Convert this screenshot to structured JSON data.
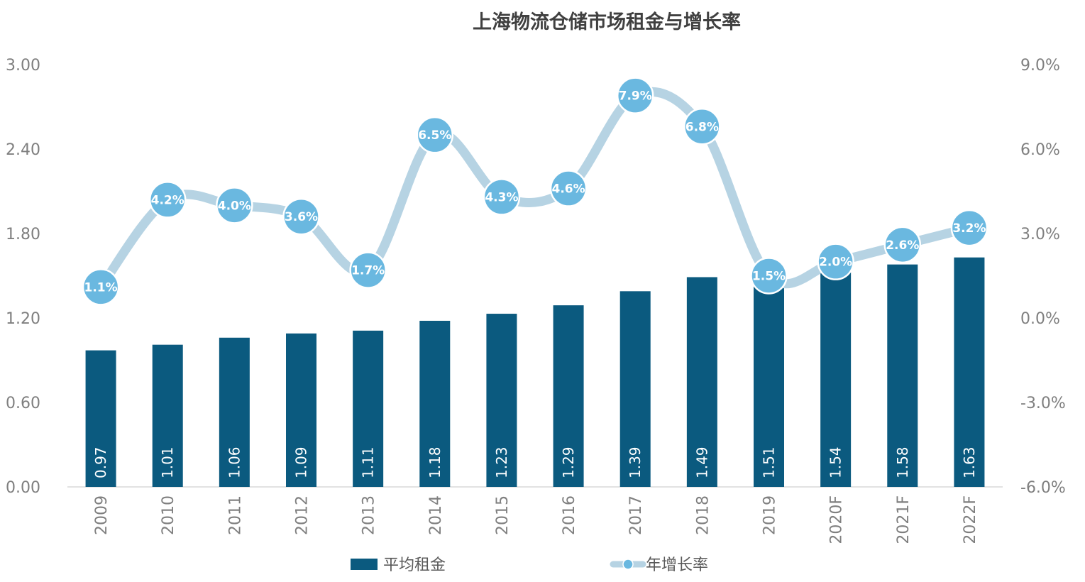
{
  "chart_data": {
    "type": "bar",
    "title": "上海物流仓储市场租金与增长率",
    "categories": [
      "2009",
      "2010",
      "2011",
      "2012",
      "2013",
      "2014",
      "2015",
      "2016",
      "2017",
      "2018",
      "2019",
      "2020F",
      "2021F",
      "2022F"
    ],
    "series": [
      {
        "name": "平均租金",
        "type": "bar",
        "axis": "left",
        "values": [
          0.97,
          1.01,
          1.06,
          1.09,
          1.11,
          1.18,
          1.23,
          1.29,
          1.39,
          1.49,
          1.51,
          1.54,
          1.58,
          1.63
        ],
        "labels": [
          "0.97",
          "1.01",
          "1.06",
          "1.09",
          "1.11",
          "1.18",
          "1.23",
          "1.29",
          "1.39",
          "1.49",
          "1.51",
          "1.54",
          "1.58",
          "1.63"
        ]
      },
      {
        "name": "年增长率",
        "type": "line",
        "smooth": true,
        "axis": "right",
        "values": [
          1.1,
          4.2,
          4.0,
          3.6,
          1.7,
          6.5,
          4.3,
          4.6,
          7.9,
          6.8,
          1.5,
          2.0,
          2.6,
          3.2
        ],
        "labels": [
          "1.1%",
          "4.2%",
          "4.0%",
          "3.6%",
          "1.7%",
          "6.5%",
          "4.3%",
          "4.6%",
          "7.9%",
          "6.8%",
          "1.5%",
          "2.0%",
          "2.6%",
          "3.2%"
        ]
      }
    ],
    "y_left": {
      "ylim": [
        0,
        3.0
      ],
      "ticks": [
        "0.00",
        "0.60",
        "1.20",
        "1.80",
        "2.40",
        "3.00"
      ],
      "tick_values": [
        0,
        0.6,
        1.2,
        1.8,
        2.4,
        3.0
      ]
    },
    "y_right": {
      "ylim": [
        -6.0,
        9.0
      ],
      "ticks": [
        "-6.0%",
        "-3.0%",
        "0.0%",
        "3.0%",
        "6.0%",
        "9.0%"
      ],
      "tick_values": [
        -6,
        -3,
        0,
        3,
        6,
        9
      ]
    },
    "grid": false,
    "legend_position": "bottom",
    "colors": {
      "bar": "#0b5a7f",
      "line": "#b6d3e3",
      "marker": "#6ab8e0",
      "marker_border": "#ffffff",
      "title": "#404040",
      "axis_text": "#7f7f7f"
    }
  }
}
